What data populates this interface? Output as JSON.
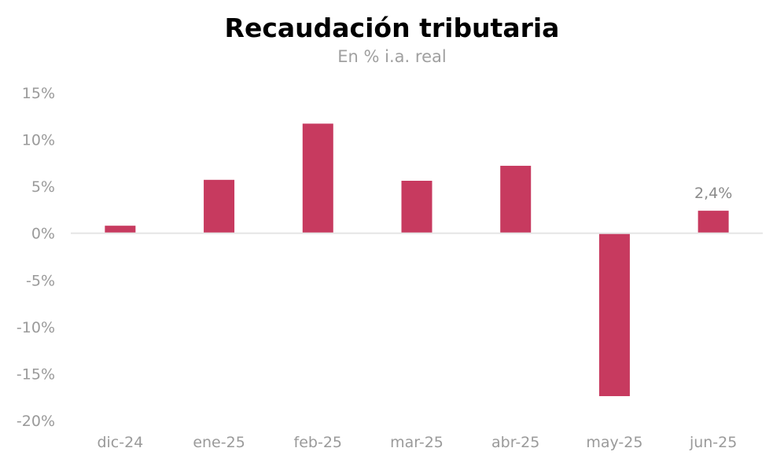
{
  "title": "Recaudación tributaria",
  "subtitle": "En % i.a. real",
  "colors": {
    "bar": "#c73a5f",
    "zero_line": "#e6e6e6",
    "axis_text": "#9a9a9a"
  },
  "chart_data": {
    "type": "bar",
    "title": "Recaudación tributaria",
    "subtitle": "En % i.a. real",
    "categories": [
      "dic-24",
      "ene-25",
      "feb-25",
      "mar-25",
      "abr-25",
      "may-25",
      "jun-25"
    ],
    "values": [
      0.8,
      5.7,
      11.7,
      5.6,
      7.2,
      -17.4,
      2.4
    ],
    "ylim": [
      -20,
      15
    ],
    "yticks": [
      15,
      10,
      5,
      0,
      -5,
      -10,
      -15,
      -20
    ],
    "ytick_labels": [
      "15%",
      "10%",
      "5%",
      "0%",
      "-5%",
      "-10%",
      "-15%",
      "-20%"
    ],
    "data_labels": [
      {
        "category": "jun-25",
        "text": "2,4%"
      }
    ],
    "grid": false,
    "legend": "none"
  }
}
